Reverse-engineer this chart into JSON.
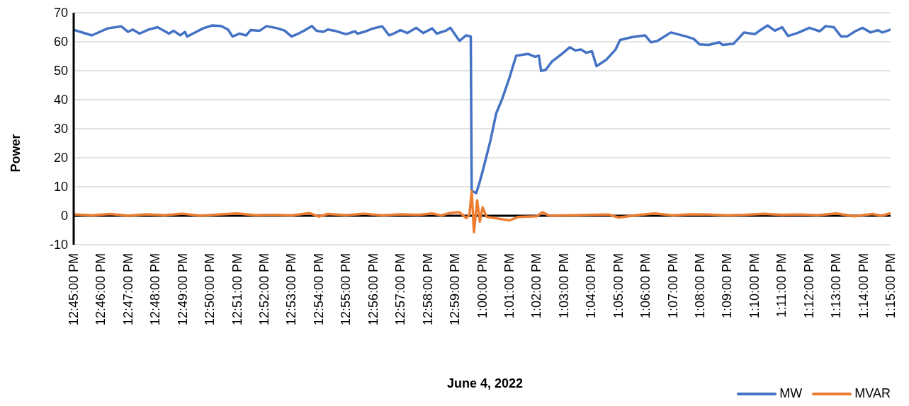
{
  "chart_data": {
    "type": "line",
    "xlabel": "June 4, 2022",
    "ylabel": "Power",
    "xlim": [
      "2022-06-04T12:45:00",
      "2022-06-04T13:15:00"
    ],
    "xticks": [
      {
        "value": "2022-06-04T12:45:00",
        "label": "12:45:00 PM"
      },
      {
        "value": "2022-06-04T12:46:00",
        "label": "12:46:00 PM"
      },
      {
        "value": "2022-06-04T12:47:00",
        "label": "12:47:00 PM"
      },
      {
        "value": "2022-06-04T12:48:00",
        "label": "12:48:00 PM"
      },
      {
        "value": "2022-06-04T12:49:00",
        "label": "12:49:00 PM"
      },
      {
        "value": "2022-06-04T12:50:00",
        "label": "12:50:00 PM"
      },
      {
        "value": "2022-06-04T12:51:00",
        "label": "12:51:00 PM"
      },
      {
        "value": "2022-06-04T12:52:00",
        "label": "12:52:00 PM"
      },
      {
        "value": "2022-06-04T12:53:00",
        "label": "12:53:00 PM"
      },
      {
        "value": "2022-06-04T12:54:00",
        "label": "12:54:00 PM"
      },
      {
        "value": "2022-06-04T12:55:00",
        "label": "12:55:00 PM"
      },
      {
        "value": "2022-06-04T12:56:00",
        "label": "12:56:00 PM"
      },
      {
        "value": "2022-06-04T12:57:00",
        "label": "12:57:00 PM"
      },
      {
        "value": "2022-06-04T12:58:00",
        "label": "12:58:00 PM"
      },
      {
        "value": "2022-06-04T12:59:00",
        "label": "12:59:00 PM"
      },
      {
        "value": "2022-06-04T13:00:00",
        "label": "1:00:00 PM"
      },
      {
        "value": "2022-06-04T13:01:00",
        "label": "1:01:00 PM"
      },
      {
        "value": "2022-06-04T13:02:00",
        "label": "1:02:00 PM"
      },
      {
        "value": "2022-06-04T13:03:00",
        "label": "1:03:00 PM"
      },
      {
        "value": "2022-06-04T13:04:00",
        "label": "1:04:00 PM"
      },
      {
        "value": "2022-06-04T13:05:00",
        "label": "1:05:00 PM"
      },
      {
        "value": "2022-06-04T13:06:00",
        "label": "1:06:00 PM"
      },
      {
        "value": "2022-06-04T13:07:00",
        "label": "1:07:00 PM"
      },
      {
        "value": "2022-06-04T13:08:00",
        "label": "1:08:00 PM"
      },
      {
        "value": "2022-06-04T13:09:00",
        "label": "1:09:00 PM"
      },
      {
        "value": "2022-06-04T13:10:00",
        "label": "1:10:00 PM"
      },
      {
        "value": "2022-06-04T13:11:00",
        "label": "1:11:00 PM"
      },
      {
        "value": "2022-06-04T13:12:00",
        "label": "1:12:00 PM"
      },
      {
        "value": "2022-06-04T13:13:00",
        "label": "1:13:00 PM"
      },
      {
        "value": "2022-06-04T13:14:00",
        "label": "1:14:00 PM"
      },
      {
        "value": "2022-06-04T13:15:00",
        "label": "1:15:00 PM"
      }
    ],
    "ylim": [
      -10,
      70
    ],
    "yticks": [
      -10,
      0,
      10,
      20,
      30,
      40,
      50,
      60,
      70
    ],
    "grid": "y",
    "legend": "bottom right",
    "marker": "none",
    "line_style": "solid",
    "series": [
      {
        "name": "MW",
        "color": "#4472c4",
        "x": [
          "2022-06-04T12:45:00",
          "2022-06-04T12:45:40",
          "2022-06-04T12:46:15",
          "2022-06-04T12:46:45",
          "2022-06-04T12:47:00",
          "2022-06-04T12:47:10",
          "2022-06-04T12:47:25",
          "2022-06-04T12:47:45",
          "2022-06-04T12:48:05",
          "2022-06-04T12:48:30",
          "2022-06-04T12:48:40",
          "2022-06-04T12:48:55",
          "2022-06-04T12:49:05",
          "2022-06-04T12:49:10",
          "2022-06-04T12:49:25",
          "2022-06-04T12:49:45",
          "2022-06-04T12:50:05",
          "2022-06-04T12:50:25",
          "2022-06-04T12:50:40",
          "2022-06-04T12:50:50",
          "2022-06-04T12:51:05",
          "2022-06-04T12:51:20",
          "2022-06-04T12:51:30",
          "2022-06-04T12:51:50",
          "2022-06-04T12:52:05",
          "2022-06-04T12:52:30",
          "2022-06-04T12:52:45",
          "2022-06-04T12:53:00",
          "2022-06-04T12:53:15",
          "2022-06-04T12:53:30",
          "2022-06-04T12:53:45",
          "2022-06-04T12:53:55",
          "2022-06-04T12:54:10",
          "2022-06-04T12:54:20",
          "2022-06-04T12:54:35",
          "2022-06-04T12:55:00",
          "2022-06-04T12:55:20",
          "2022-06-04T12:55:25",
          "2022-06-04T12:55:40",
          "2022-06-04T12:56:00",
          "2022-06-04T12:56:20",
          "2022-06-04T12:56:35",
          "2022-06-04T12:56:45",
          "2022-06-04T12:57:00",
          "2022-06-04T12:57:15",
          "2022-06-04T12:57:35",
          "2022-06-04T12:57:50",
          "2022-06-04T12:58:10",
          "2022-06-04T12:58:20",
          "2022-06-04T12:58:40",
          "2022-06-04T12:58:50",
          "2022-06-04T12:59:10",
          "2022-06-04T12:59:25",
          "2022-06-04T12:59:35",
          "2022-06-04T12:59:37",
          "2022-06-04T12:59:47",
          "2022-06-04T12:59:55",
          "2022-06-04T13:00:02",
          "2022-06-04T13:00:18",
          "2022-06-04T13:00:31",
          "2022-06-04T13:00:44",
          "2022-06-04T13:01:00",
          "2022-06-04T13:01:15",
          "2022-06-04T13:01:41",
          "2022-06-04T13:01:57",
          "2022-06-04T13:02:05",
          "2022-06-04T13:02:10",
          "2022-06-04T13:02:20",
          "2022-06-04T13:02:34",
          "2022-06-04T13:02:54",
          "2022-06-04T13:03:13",
          "2022-06-04T13:03:25",
          "2022-06-04T13:03:38",
          "2022-06-04T13:03:49",
          "2022-06-04T13:04:02",
          "2022-06-04T13:04:12",
          "2022-06-04T13:04:33",
          "2022-06-04T13:04:54",
          "2022-06-04T13:05:04",
          "2022-06-04T13:05:30",
          "2022-06-04T13:05:59",
          "2022-06-04T13:06:12",
          "2022-06-04T13:06:25",
          "2022-06-04T13:06:56",
          "2022-06-04T13:07:30",
          "2022-06-04T13:07:46",
          "2022-06-04T13:07:59",
          "2022-06-04T13:08:19",
          "2022-06-04T13:08:43",
          "2022-06-04T13:08:50",
          "2022-06-04T13:09:14",
          "2022-06-04T13:09:37",
          "2022-06-04T13:10:01",
          "2022-06-04T13:10:11",
          "2022-06-04T13:10:29",
          "2022-06-04T13:10:45",
          "2022-06-04T13:11:01",
          "2022-06-04T13:11:14",
          "2022-06-04T13:11:35",
          "2022-06-04T13:12:01",
          "2022-06-04T13:12:24",
          "2022-06-04T13:12:37",
          "2022-06-04T13:12:55",
          "2022-06-04T13:13:11",
          "2022-06-04T13:13:24",
          "2022-06-04T13:13:42",
          "2022-06-04T13:13:58",
          "2022-06-04T13:14:16",
          "2022-06-04T13:14:32",
          "2022-06-04T13:14:42",
          "2022-06-04T13:15:00"
        ],
        "values": [
          64.1,
          62.2,
          64.6,
          65.3,
          63.4,
          64.2,
          62.8,
          64.2,
          65,
          62.8,
          63.8,
          62.2,
          63.4,
          61.8,
          63,
          64.6,
          65.6,
          65.4,
          64.2,
          61.8,
          62.8,
          62.2,
          64,
          63.8,
          65.4,
          64.6,
          63.8,
          61.8,
          62.8,
          64,
          65.4,
          63.8,
          63.4,
          64.2,
          63.8,
          62.6,
          63.6,
          62.8,
          63.4,
          64.6,
          65.3,
          62.2,
          62.8,
          64,
          63,
          64.8,
          63,
          64.6,
          62.8,
          63.8,
          64.8,
          60.3,
          62.2,
          61.8,
          8.6,
          7.8,
          11.8,
          15.9,
          25.7,
          35.3,
          40.2,
          47.5,
          55.2,
          55.8,
          54.8,
          55.2,
          49.9,
          50.3,
          53.2,
          55.6,
          58.1,
          57,
          57.3,
          56.2,
          56.7,
          51.6,
          53.7,
          57.3,
          60.6,
          61.6,
          62.2,
          59.8,
          60.2,
          63.2,
          61.8,
          61,
          59.1,
          58.9,
          59.8,
          58.9,
          59.3,
          63.2,
          62.6,
          63.8,
          65.6,
          63.8,
          65,
          62,
          63,
          64.8,
          63.6,
          65.4,
          65,
          61.8,
          61.8,
          63.6,
          64.8,
          63.2,
          64,
          63.2,
          64.2
        ]
      },
      {
        "name": "MVAR",
        "color": "#ed7d31",
        "x": [
          "2022-06-04T12:45:00",
          "2022-06-04T12:45:40",
          "2022-06-04T12:46:20",
          "2022-06-04T12:47:00",
          "2022-06-04T12:47:40",
          "2022-06-04T12:48:20",
          "2022-06-04T12:49:00",
          "2022-06-04T12:49:40",
          "2022-06-04T12:50:20",
          "2022-06-04T12:51:00",
          "2022-06-04T12:51:40",
          "2022-06-04T12:52:20",
          "2022-06-04T12:53:00",
          "2022-06-04T12:53:40",
          "2022-06-04T12:54:00",
          "2022-06-04T12:54:20",
          "2022-06-04T12:55:00",
          "2022-06-04T12:55:40",
          "2022-06-04T12:56:20",
          "2022-06-04T12:57:00",
          "2022-06-04T12:57:40",
          "2022-06-04T12:58:10",
          "2022-06-04T12:58:30",
          "2022-06-04T12:58:50",
          "2022-06-04T12:59:10",
          "2022-06-04T12:59:25",
          "2022-06-04T12:59:32",
          "2022-06-04T12:59:37",
          "2022-06-04T12:59:42",
          "2022-06-04T12:59:49",
          "2022-06-04T12:59:55",
          "2022-06-04T13:00:01",
          "2022-06-04T13:00:10",
          "2022-06-04T13:01:00",
          "2022-06-04T13:01:20",
          "2022-06-04T13:02:00",
          "2022-06-04T13:02:13",
          "2022-06-04T13:02:28",
          "2022-06-04T13:03:10",
          "2022-06-04T13:04:00",
          "2022-06-04T13:04:40",
          "2022-06-04T13:05:00",
          "2022-06-04T13:05:40",
          "2022-06-04T13:06:20",
          "2022-06-04T13:07:00",
          "2022-06-04T13:07:40",
          "2022-06-04T13:08:20",
          "2022-06-04T13:09:00",
          "2022-06-04T13:09:40",
          "2022-06-04T13:10:20",
          "2022-06-04T13:11:00",
          "2022-06-04T13:11:40",
          "2022-06-04T13:12:20",
          "2022-06-04T13:13:00",
          "2022-06-04T13:13:40",
          "2022-06-04T13:14:20",
          "2022-06-04T13:14:40",
          "2022-06-04T13:15:00"
        ],
        "values": [
          0.5,
          0.1,
          0.6,
          0,
          0.5,
          0.2,
          0.7,
          0,
          0.4,
          0.8,
          0.2,
          0.3,
          0.1,
          0.9,
          -0.3,
          0.6,
          0.2,
          0.7,
          0.1,
          0.5,
          0.3,
          0.8,
          0.1,
          1,
          1.2,
          -0.8,
          0.4,
          8.5,
          -5.7,
          5.3,
          -2,
          2.9,
          -0.4,
          -1.6,
          -0.4,
          -0.2,
          1.2,
          0,
          0.1,
          0.3,
          0.4,
          -0.6,
          0.2,
          0.8,
          0.1,
          0.5,
          0.4,
          0.1,
          0.3,
          0.7,
          0.3,
          0.4,
          0.2,
          0.8,
          -0.2,
          0.6,
          0,
          0.9
        ]
      }
    ]
  }
}
